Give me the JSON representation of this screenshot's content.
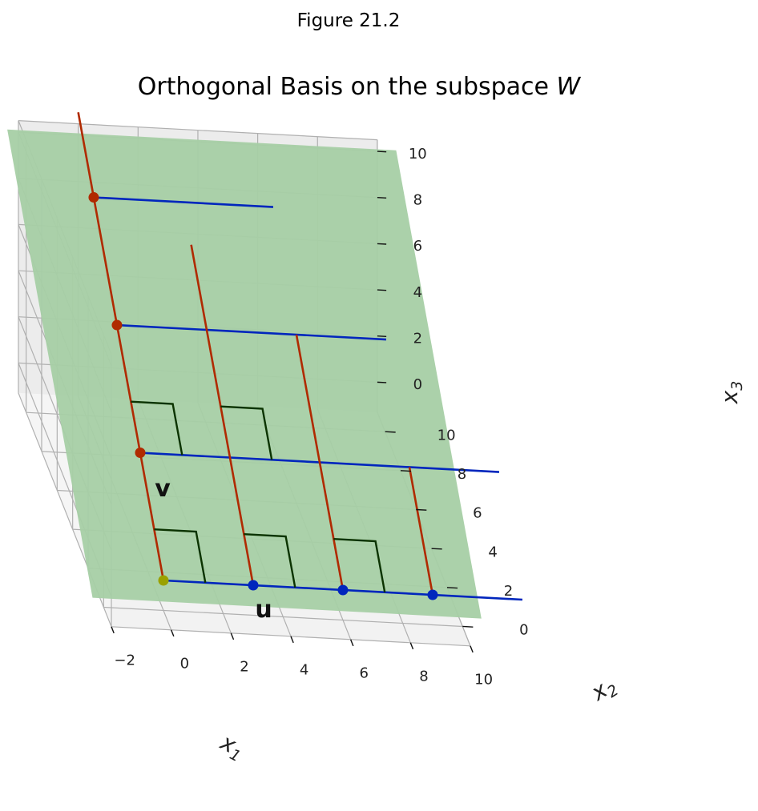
{
  "figure_label": "Figure 21.2",
  "chart_data": {
    "type": "3d-line",
    "title": "Orthogonal Basis on the subspace W",
    "title_prefix": "Orthogonal Basis on the subspace",
    "title_italic": "W",
    "xlabel": "x",
    "xlabel_sub": "1",
    "ylabel": "x",
    "ylabel_sub": "2",
    "zlabel": "x",
    "zlabel_sub": "3",
    "xlim": [
      -2.0,
      10.0
    ],
    "ylim": [
      -1.0,
      11.0
    ],
    "zlim": [
      -1.3,
      10.5
    ],
    "xticks": [
      "−2",
      "0",
      "2",
      "4",
      "6",
      "8",
      "10"
    ],
    "yticks": [
      "0",
      "2",
      "4",
      "6",
      "8",
      "10"
    ],
    "zticks": [
      "0",
      "2",
      "4",
      "6",
      "8",
      "10"
    ],
    "grid": true,
    "plane": {
      "name": "W",
      "color": "#a7cfa5"
    },
    "vector_labels": {
      "u": "u",
      "v": "v"
    },
    "colors": {
      "u_lines": "#0026bd",
      "v_lines": "#b02a00",
      "origin": "#9aa100",
      "right_angle": "#0b3300"
    },
    "origin_point": [
      0,
      0,
      0
    ],
    "u_points": [
      [
        3,
        0,
        0
      ],
      [
        6,
        0,
        0
      ],
      [
        9,
        0,
        0
      ]
    ],
    "v_points": [
      [
        0,
        3,
        3
      ],
      [
        0,
        6,
        6
      ],
      [
        0,
        9,
        9
      ]
    ],
    "u_lines": [
      {
        "from": [
          0,
          0,
          0
        ],
        "to": [
          12,
          0,
          0
        ]
      },
      {
        "from": [
          0,
          3,
          3
        ],
        "to": [
          12,
          3,
          3
        ]
      },
      {
        "from": [
          0,
          6,
          6
        ],
        "to": [
          9,
          6,
          6
        ]
      },
      {
        "from": [
          0,
          9,
          9
        ],
        "to": [
          6,
          9,
          9
        ]
      }
    ],
    "v_lines": [
      {
        "from": [
          0,
          0,
          0
        ],
        "to": [
          0,
          11,
          11
        ]
      },
      {
        "from": [
          3,
          0,
          0
        ],
        "to": [
          3,
          8,
          8
        ]
      },
      {
        "from": [
          6,
          0,
          0
        ],
        "to": [
          6,
          6,
          6
        ]
      },
      {
        "from": [
          9,
          0,
          0
        ],
        "to": [
          9,
          3,
          3
        ]
      }
    ],
    "right_angle_markers": [
      [
        0,
        0,
        0
      ],
      [
        3,
        0,
        0
      ],
      [
        6,
        0,
        0
      ],
      [
        0,
        3,
        3
      ],
      [
        3,
        3,
        3
      ]
    ]
  }
}
